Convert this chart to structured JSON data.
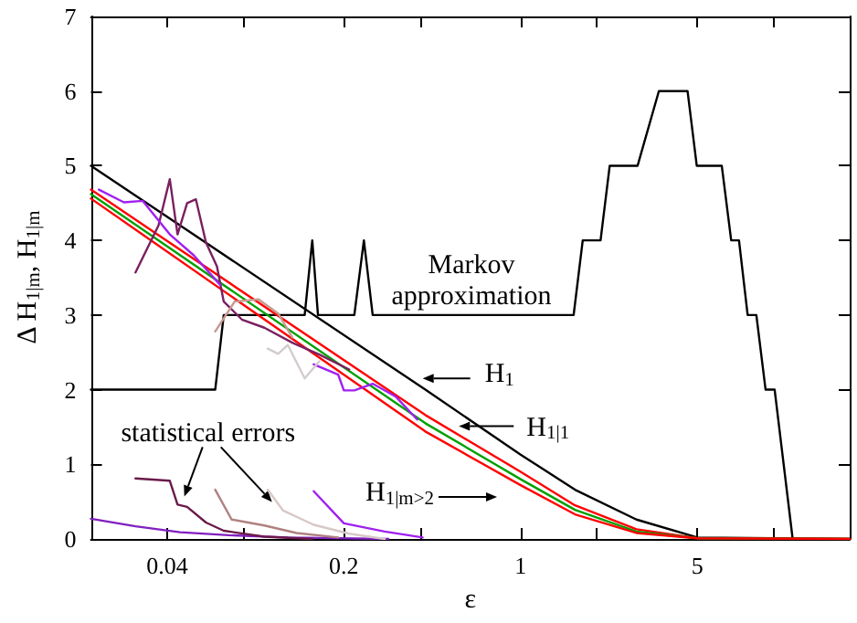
{
  "chart_data": {
    "type": "line",
    "xlabel": "ε",
    "ylabel": "Δ H$_{1|m}$, H$_{1|m}$",
    "log": "x",
    "grid": false,
    "marker": "none",
    "line_style": "solid",
    "xlim": [
      0.02,
      20
    ],
    "xticks": [
      {
        "value": 0.04,
        "label": "0.04"
      },
      {
        "value": 0.08,
        "label": null
      },
      {
        "value": 0.2,
        "label": "0.2"
      },
      {
        "value": 0.4,
        "label": null
      },
      {
        "value": 1,
        "label": "1"
      },
      {
        "value": 2,
        "label": null
      },
      {
        "value": 5,
        "label": "5"
      },
      {
        "value": 10,
        "label": null
      }
    ],
    "ylim": [
      0,
      7
    ],
    "yticks": [
      0,
      1,
      2,
      3,
      4,
      5,
      6,
      7
    ],
    "series": [
      {
        "color": "#000000",
        "x": [
          0.02,
          0.062,
          0.067,
          0.14,
          0.15,
          0.158,
          0.22,
          0.24,
          0.26,
          1.62,
          1.76,
          2.07,
          2.25,
          2.9,
          3.52,
          4.57,
          4.97,
          6.24,
          6.8,
          7.3,
          7.9,
          8.55,
          9.3,
          10.1,
          11.9
        ],
        "values": [
          2,
          2,
          3,
          3,
          4,
          3,
          3,
          4,
          3,
          3,
          4,
          4,
          5,
          5,
          6,
          6,
          5,
          5,
          4,
          4,
          3,
          3,
          2,
          2,
          0
        ]
      },
      {
        "color": "#000000",
        "x": [
          0.02,
          0.42,
          1,
          1.64,
          2.87,
          5,
          20
        ],
        "values": [
          5.0,
          2.0,
          1.13,
          0.66,
          0.26,
          0.02,
          0
        ]
      },
      {
        "color": "#ff0000",
        "x": [
          0.02,
          0.42,
          1,
          1.64,
          2.87,
          5,
          20
        ],
        "values": [
          4.68,
          1.66,
          0.9,
          0.45,
          0.13,
          0.01,
          0
        ]
      },
      {
        "color": "#00a000",
        "x": [
          0.02,
          0.42,
          1,
          1.64,
          2.87,
          5,
          20
        ],
        "values": [
          4.62,
          1.55,
          0.8,
          0.39,
          0.1,
          0.01,
          0
        ]
      },
      {
        "color": "#ff0000",
        "x": [
          0.02,
          0.42,
          1,
          1.64,
          2.87,
          5,
          20
        ],
        "values": [
          4.56,
          1.44,
          0.72,
          0.33,
          0.08,
          0.01,
          0
        ]
      },
      {
        "color": "#7a2060",
        "x": [
          0.03,
          0.037,
          0.041,
          0.044,
          0.048,
          0.052,
          0.057,
          0.063,
          0.067,
          0.079,
          0.097,
          0.125,
          0.16,
          0.21
        ],
        "values": [
          3.57,
          4.2,
          4.82,
          4.08,
          4.5,
          4.55,
          3.97,
          3.65,
          3.18,
          2.94,
          2.83,
          2.63,
          2.47,
          2.27
        ]
      },
      {
        "color": "#a020f0",
        "x": [
          0.0215,
          0.027,
          0.032,
          0.041,
          0.051,
          0.065,
          0.1,
          0.152,
          0.19,
          0.2,
          0.22,
          0.26,
          0.32,
          0.39
        ],
        "values": [
          4.68,
          4.51,
          4.53,
          4.08,
          3.8,
          3.4,
          null,
          2.34,
          2.2,
          1.99,
          1.99,
          2.08,
          1.91,
          1.6
        ]
      },
      {
        "color": "#c89890",
        "x": [
          0.062,
          0.074,
          0.092,
          0.11,
          0.125
        ],
        "values": [
          2.78,
          3.18,
          3.21,
          3.02,
          2.7
        ]
      },
      {
        "color": "#d4cccc",
        "x": [
          0.1,
          0.11,
          0.12,
          0.14,
          0.16
        ],
        "values": [
          2.55,
          2.48,
          2.6,
          2.15,
          2.38
        ]
      },
      {
        "color": "#8020c0",
        "x": [
          0.02,
          0.03,
          0.045,
          0.07,
          0.12,
          0.3
        ],
        "values": [
          0.27,
          0.17,
          0.09,
          0.05,
          0.02,
          0
        ]
      },
      {
        "color": "#6a1a4a",
        "x": [
          0.03,
          0.041,
          0.044,
          0.048,
          0.057,
          0.067,
          0.097,
          0.15
        ],
        "values": [
          0.81,
          0.78,
          0.46,
          0.43,
          0.22,
          0.11,
          0.03,
          0
        ]
      },
      {
        "color": "#b08080",
        "x": [
          0.062,
          0.072,
          0.097,
          0.13,
          0.19
        ],
        "values": [
          0.66,
          0.26,
          0.18,
          0.08,
          0.02
        ]
      },
      {
        "color": "#d8c8c8",
        "x": [
          0.1,
          0.115,
          0.152,
          0.21,
          0.29
        ],
        "values": [
          0.66,
          0.38,
          0.19,
          0.07,
          0
        ]
      },
      {
        "color": "#a020f0",
        "x": [
          0.152,
          0.2,
          0.29,
          0.41
        ],
        "values": [
          0.64,
          0.21,
          0.1,
          0.02
        ]
      }
    ],
    "annotations": [
      {
        "text": "H$_{1}$",
        "x": 0.41,
        "y": 2.15
      },
      {
        "text": "H$_{1|1}$",
        "x": 0.57,
        "y": 1.51
      },
      "H$_{1|m>2}$",
      "Markov\napproximation",
      {
        "text": "statistical errors",
        "x": 0.0468,
        "y": 0.57
      }
    ]
  }
}
